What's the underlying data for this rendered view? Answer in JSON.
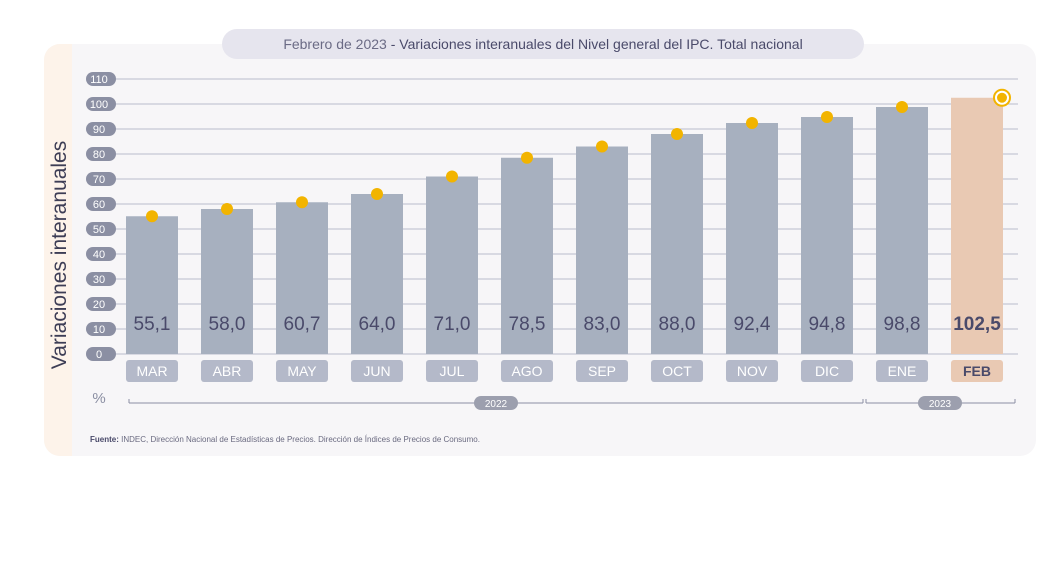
{
  "title": {
    "date": "Febrero de 2023",
    "separator": " - ",
    "text": "Variaciones interanuales del Nivel general del IPC. Total nacional"
  },
  "source": {
    "label": "Fuente:",
    "text": "INDEC, Dirección Nacional de Estadísticas de Precios. Dirección de Índices de Precios de Consumo."
  },
  "colors": {
    "bar": "#a7b0bf",
    "bar_highlight": "#e9c9b3",
    "marker": "#f2b400",
    "label_text": "#4a4a6a",
    "tick_badge": "#8b8fa3"
  },
  "chart_data": {
    "type": "bar",
    "ylabel": "Variaciones interanuales",
    "unit": "%",
    "ylim": [
      0,
      110
    ],
    "yticks": [
      0,
      10,
      20,
      30,
      40,
      50,
      60,
      70,
      80,
      90,
      100,
      110
    ],
    "grid": true,
    "categories": [
      "MAR",
      "ABR",
      "MAY",
      "JUN",
      "JUL",
      "AGO",
      "SEP",
      "OCT",
      "NOV",
      "DIC",
      "ENE",
      "FEB"
    ],
    "values": [
      55.1,
      58.0,
      60.7,
      64.0,
      71.0,
      78.5,
      83.0,
      88.0,
      92.4,
      94.8,
      98.8,
      102.5
    ],
    "value_labels": [
      "55,1",
      "58,0",
      "60,7",
      "64,0",
      "71,0",
      "78,5",
      "83,0",
      "88,0",
      "92,4",
      "94,8",
      "98,8",
      "102,5"
    ],
    "highlight_index": 11,
    "year_groups": [
      {
        "label": "2022",
        "start": 0,
        "end": 9
      },
      {
        "label": "2023",
        "start": 10,
        "end": 11
      }
    ]
  }
}
